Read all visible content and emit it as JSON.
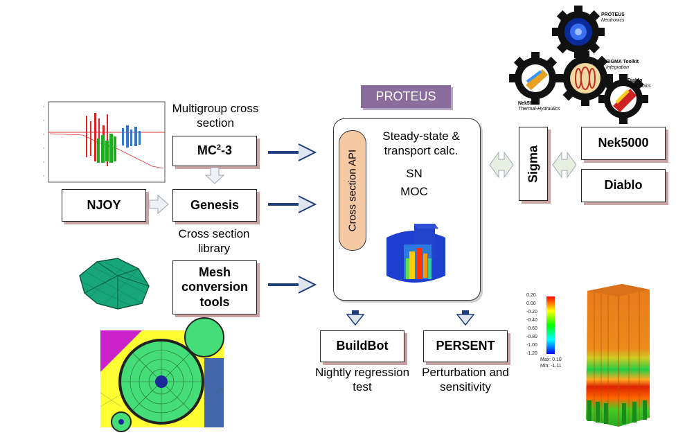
{
  "inputs": {
    "multigroup_label": "Multigroup cross section",
    "mc23_main": "MC",
    "mc23_sup": "2",
    "mc23_suffix": "-3",
    "njoy": "NJOY",
    "genesis": "Genesis",
    "cross_section_library": "Cross section library",
    "mesh_conversion": "Mesh conversion tools"
  },
  "proteus": {
    "title": "PROTEUS",
    "api_label": "Cross section API",
    "calc_label": "Steady-state & transport calc.",
    "method_1": "SN",
    "method_2": "MOC"
  },
  "outputs": {
    "buildbot": "BuildBot",
    "buildbot_caption": "Nightly regression test",
    "persent": "PERSENT",
    "persent_caption": "Perturbation and sensitivity"
  },
  "coupling": {
    "sigma": "Sigma",
    "nek5000": "Nek5000",
    "diablo": "Diablo"
  },
  "gears": {
    "proteus": {
      "name": "PROTEUS",
      "sub": "Neutronics"
    },
    "sigma": {
      "name": "SIGMA Toolkit",
      "sub": "Integration"
    },
    "diablo": {
      "name": "Diablo",
      "sub": "Mechanics"
    },
    "nek": {
      "name": "Nek5000",
      "sub": "Thermal-Hydraulics"
    }
  },
  "legend": {
    "ticks": [
      "0.20",
      "0.00",
      "-0.20",
      "-0.40",
      "-0.60",
      "-0.80",
      "-1.00",
      "-1.20"
    ],
    "max": "Max: 0.10",
    "min": "Min: -1.11"
  },
  "colors": {
    "proteus_tag": "#8a6d9c",
    "api_pill": "#f6c9a5",
    "box_shadow": "#c9a3a3",
    "arrow_blue": "#1f3f7a"
  }
}
